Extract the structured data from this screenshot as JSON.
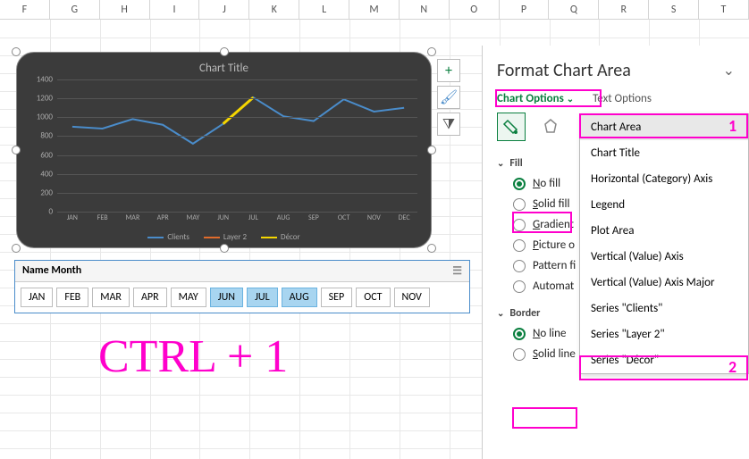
{
  "columns": [
    "F",
    "G",
    "H",
    "I",
    "J",
    "K",
    "L",
    "M",
    "N",
    "O",
    "P",
    "Q",
    "R",
    "S",
    "T"
  ],
  "chart": {
    "title": "Chart Title",
    "background": "#3b3b3b",
    "grid_color": "#555555",
    "yticks": [
      0,
      200,
      400,
      600,
      800,
      1000,
      1200,
      1400
    ],
    "ylim": [
      0,
      1400
    ],
    "months": [
      "JAN",
      "FEB",
      "MAR",
      "APR",
      "MAY",
      "JUN",
      "JUL",
      "AUG",
      "SEP",
      "OCT",
      "NOV",
      "DEC"
    ],
    "series": [
      {
        "name": "Clients",
        "color": "#4a8cca",
        "values": [
          900,
          880,
          980,
          920,
          720,
          930,
          1210,
          1010,
          960,
          1190,
          1060,
          1100
        ]
      },
      {
        "name": "Layer 2",
        "color": "#e06b2b",
        "values": null
      },
      {
        "name": "Décor",
        "color": "#f5d600",
        "values": [
          null,
          null,
          null,
          null,
          null,
          930,
          1210,
          null,
          null,
          null,
          null,
          null
        ]
      }
    ],
    "side_buttons": [
      {
        "id": "plus",
        "glyph": "+",
        "color": "#0a7f3f"
      },
      {
        "id": "brush",
        "glyph": "🖌",
        "color": "#4a8cca"
      },
      {
        "id": "filter",
        "glyph": "⧩",
        "color": "#555"
      }
    ]
  },
  "slicer": {
    "title": "Name Month",
    "items": [
      {
        "label": "JAN",
        "selected": false
      },
      {
        "label": "FEB",
        "selected": false
      },
      {
        "label": "MAR",
        "selected": false
      },
      {
        "label": "APR",
        "selected": false
      },
      {
        "label": "MAY",
        "selected": false
      },
      {
        "label": "JUN",
        "selected": true
      },
      {
        "label": "JUL",
        "selected": true
      },
      {
        "label": "AUG",
        "selected": true
      },
      {
        "label": "SEP",
        "selected": false
      },
      {
        "label": "OCT",
        "selected": false
      },
      {
        "label": "NOV",
        "selected": false
      }
    ]
  },
  "shortcut_text": "CTRL + 1",
  "pane": {
    "title": "Format Chart Area",
    "tab_chart": "Chart Options",
    "tab_text": "Text Options",
    "section_fill": "Fill",
    "section_border": "Border",
    "fill_options": [
      {
        "label": "No fill",
        "checked": true,
        "key": "N"
      },
      {
        "label": "Solid fill",
        "checked": false,
        "key": "S"
      },
      {
        "label": "Gradient",
        "checked": false,
        "key": "G"
      },
      {
        "label": "Picture o",
        "checked": false,
        "key": "P"
      },
      {
        "label": "Pattern fi",
        "checked": false,
        "key": "A"
      },
      {
        "label": "Automat",
        "checked": false,
        "key": "U"
      }
    ],
    "border_options": [
      {
        "label": "No line",
        "checked": true,
        "key": "N"
      },
      {
        "label": "Solid line",
        "checked": false,
        "key": "S"
      }
    ]
  },
  "dropdown": {
    "items": [
      "Chart Area",
      "Chart Title",
      "Horizontal (Category) Axis",
      "Legend",
      "Plot Area",
      "Vertical (Value) Axis",
      "Vertical (Value) Axis Major",
      "Series \"Clients\"",
      "Series \"Layer 2\"",
      "Series \"Décor\""
    ],
    "hover_index": 0
  },
  "annotations": {
    "label1": "1",
    "label2": "2"
  }
}
